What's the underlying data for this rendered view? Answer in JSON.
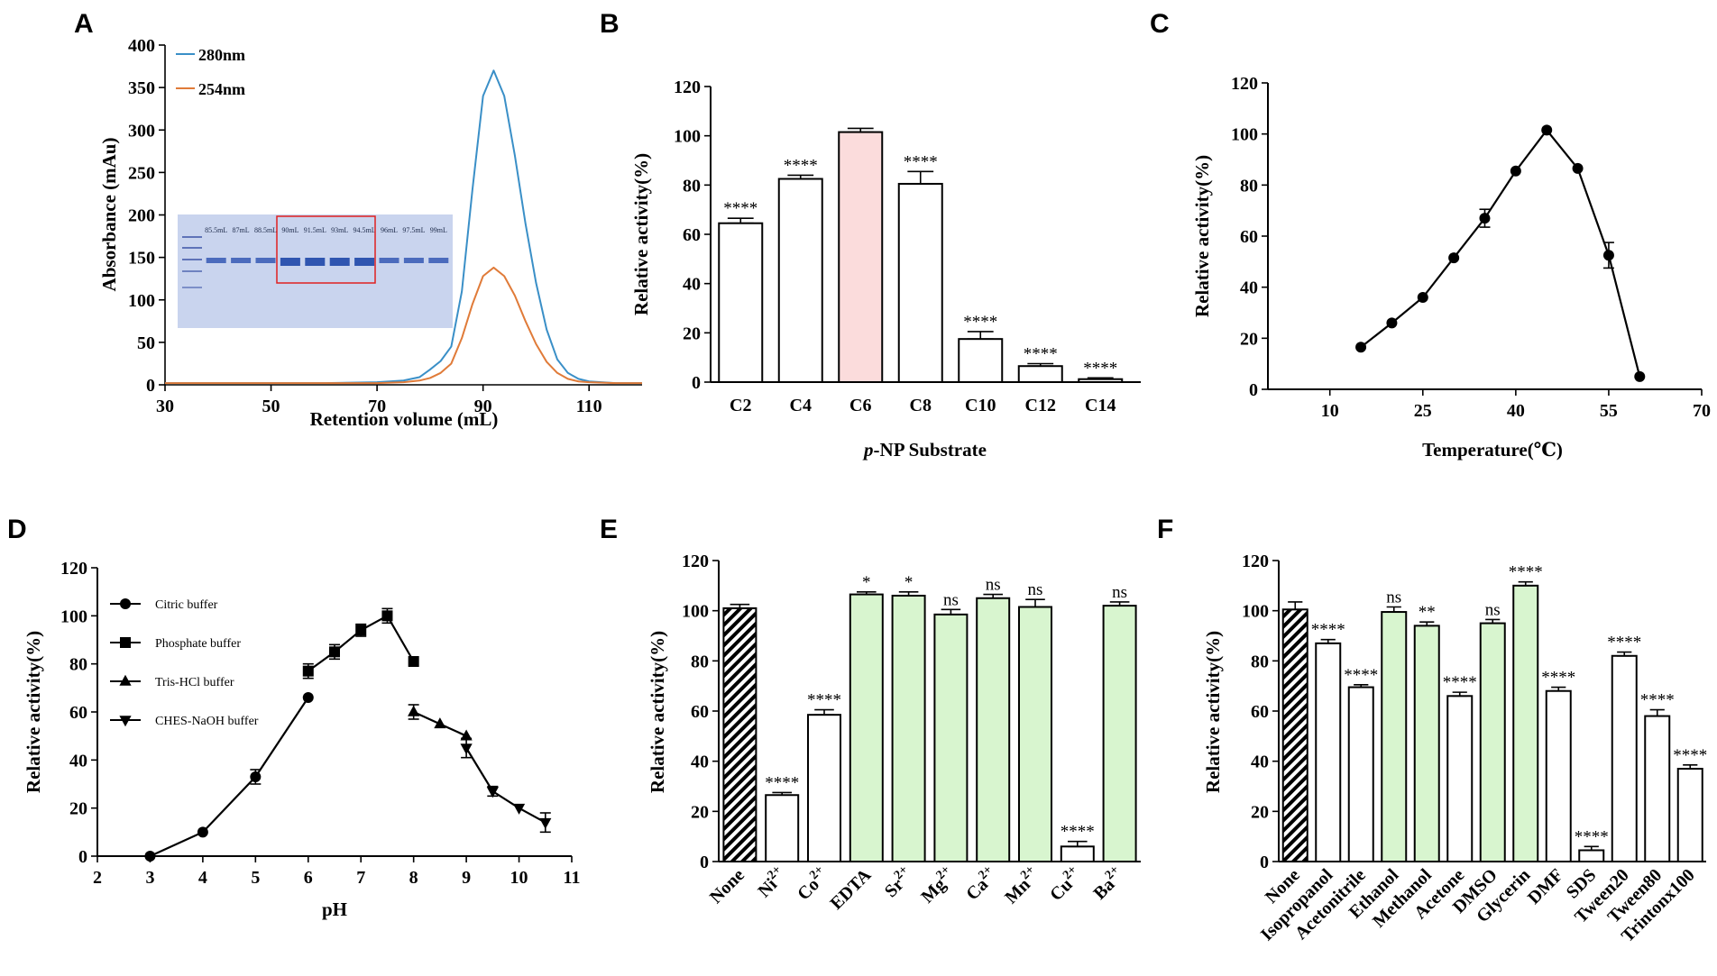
{
  "panel_labels": [
    "A",
    "B",
    "C",
    "D",
    "E",
    "F"
  ],
  "chart_data": [
    {
      "id": "A",
      "type": "line",
      "title": "",
      "xlabel": "Retention volume (mL)",
      "ylabel": "Absorbance (mAu)",
      "xlim": [
        30,
        120
      ],
      "ylim": [
        0,
        400
      ],
      "xticks": [
        30,
        50,
        70,
        90,
        110
      ],
      "yticks": [
        0,
        50,
        100,
        150,
        200,
        250,
        300,
        350,
        400
      ],
      "series": [
        {
          "name": "280nm",
          "color": "#3a8fc7",
          "x": [
            30,
            60,
            70,
            75,
            78,
            80,
            82,
            84,
            86,
            88,
            90,
            92,
            94,
            96,
            98,
            100,
            102,
            104,
            106,
            108,
            110,
            115,
            120
          ],
          "y": [
            2,
            2,
            3,
            5,
            9,
            18,
            28,
            45,
            110,
            230,
            340,
            370,
            340,
            270,
            190,
            120,
            65,
            30,
            14,
            7,
            4,
            2,
            2
          ]
        },
        {
          "name": "254nm",
          "color": "#e07b39",
          "x": [
            30,
            60,
            70,
            75,
            78,
            80,
            82,
            84,
            86,
            88,
            90,
            92,
            94,
            96,
            98,
            100,
            102,
            104,
            106,
            108,
            110,
            115,
            120
          ],
          "y": [
            2,
            2,
            2,
            3,
            5,
            8,
            14,
            25,
            55,
            95,
            128,
            138,
            128,
            105,
            75,
            48,
            27,
            14,
            7,
            4,
            3,
            2,
            2
          ]
        }
      ],
      "inset_gel": {
        "lane_labels": [
          "85.5mL",
          "87mL",
          "88.5mL",
          "90mL",
          "91.5mL",
          "93mL",
          "94.5mL",
          "96mL",
          "97.5mL",
          "99mL"
        ],
        "highlight": [
          "90mL",
          "91.5mL",
          "93mL",
          "94.5mL"
        ]
      }
    },
    {
      "id": "B",
      "type": "bar",
      "xlabel_prefix": "p",
      "xlabel": "-NP Substrate",
      "ylabel": "Relative activity(%)",
      "ylim": [
        0,
        120
      ],
      "yticks": [
        0,
        20,
        40,
        60,
        80,
        100,
        120
      ],
      "categories": [
        "C2",
        "C4",
        "C6",
        "C8",
        "C10",
        "C12",
        "C14"
      ],
      "values": [
        64.5,
        82.5,
        101.5,
        80.5,
        17.5,
        6.5,
        1.2
      ],
      "errors": [
        2,
        1.5,
        1.5,
        5,
        3,
        1,
        0.5
      ],
      "significance": [
        "****",
        "****",
        "",
        "****",
        "****",
        "****",
        "****"
      ],
      "highlight_color": "#fbdcdc",
      "highlight_index": 2
    },
    {
      "id": "C",
      "type": "line",
      "xlabel": "Temperature(℃)",
      "ylabel": "Relative activity(%)",
      "xlim": [
        0,
        70
      ],
      "ylim": [
        0,
        120
      ],
      "xticks": [
        10,
        25,
        40,
        55,
        70
      ],
      "yticks": [
        0,
        20,
        40,
        60,
        80,
        100,
        120
      ],
      "x": [
        15,
        20,
        25,
        30,
        35,
        40,
        45,
        50,
        55,
        60
      ],
      "y": [
        16.5,
        26,
        36,
        51.5,
        67,
        85.5,
        101.5,
        86.5,
        52.5,
        5
      ],
      "errors": [
        0.5,
        0.5,
        0.5,
        0.5,
        3.5,
        0.5,
        0.5,
        0.5,
        5,
        0.5
      ]
    },
    {
      "id": "D",
      "type": "line",
      "xlabel": "pH",
      "ylabel": "Relative activity(%)",
      "xlim": [
        2,
        11
      ],
      "ylim": [
        0,
        120
      ],
      "xticks": [
        2,
        3,
        4,
        5,
        6,
        7,
        8,
        9,
        10,
        11
      ],
      "yticks": [
        0,
        20,
        40,
        60,
        80,
        100,
        120
      ],
      "series": [
        {
          "name": "Citric buffer",
          "marker": "circle",
          "x": [
            3,
            4,
            5,
            6
          ],
          "y": [
            0,
            10,
            33,
            66
          ],
          "errors": [
            0,
            1,
            3,
            1
          ]
        },
        {
          "name": "Phosphate buffer",
          "marker": "square",
          "x": [
            6,
            6.5,
            7,
            7.5,
            8
          ],
          "y": [
            77,
            85,
            94,
            100,
            81
          ],
          "errors": [
            3,
            3,
            2.5,
            3,
            1
          ]
        },
        {
          "name": "Tris-HCl buffer",
          "marker": "triangle-up",
          "x": [
            8,
            8.5,
            9
          ],
          "y": [
            60,
            55,
            50
          ],
          "errors": [
            3,
            1,
            1
          ]
        },
        {
          "name": "CHES-NaOH buffer",
          "marker": "triangle-down",
          "x": [
            9,
            9.5,
            10,
            10.5
          ],
          "y": [
            45,
            27,
            20,
            14
          ],
          "errors": [
            4,
            2,
            1,
            4
          ]
        }
      ]
    },
    {
      "id": "E",
      "type": "bar",
      "xlabel": "",
      "ylabel": "Relative activity(%)",
      "ylim": [
        0,
        120
      ],
      "yticks": [
        0,
        20,
        40,
        60,
        80,
        100,
        120
      ],
      "categories": [
        "None",
        "Ni",
        "Co",
        "EDTA",
        "Sr",
        "Mg",
        "Ca",
        "Mn",
        "Cu",
        "Ba"
      ],
      "superscripts": [
        "",
        "2+",
        "2+",
        "",
        "2+",
        "2+",
        "2+",
        "2+",
        "2+",
        "2+"
      ],
      "values": [
        101,
        26.5,
        58.5,
        106.5,
        106,
        98.5,
        105,
        101.5,
        6,
        102
      ],
      "errors": [
        1.5,
        1,
        2,
        1,
        1.5,
        2,
        1.5,
        3,
        2,
        1.5
      ],
      "significance": [
        "",
        "****",
        "****",
        "*",
        "*",
        "ns",
        "ns",
        "ns",
        "****",
        "ns"
      ],
      "fills": [
        "hatch",
        "white",
        "white",
        "green",
        "green",
        "green",
        "green",
        "green",
        "white",
        "green"
      ],
      "green_color": "#d8f5cf"
    },
    {
      "id": "F",
      "type": "bar",
      "xlabel": "",
      "ylabel": "Relative activity(%)",
      "ylim": [
        0,
        120
      ],
      "yticks": [
        0,
        20,
        40,
        60,
        80,
        100,
        120
      ],
      "categories": [
        "None",
        "Isopropanol",
        "Acetonitrile",
        "Ethanol",
        "Methanol",
        "Acetone",
        "DMSO",
        "Glycerin",
        "DMF",
        "SDS",
        "Tween20",
        "Tween80",
        "Trintonx100"
      ],
      "values": [
        100.5,
        87,
        69.5,
        99.5,
        94,
        66,
        95,
        110,
        68,
        4.5,
        82,
        58,
        37
      ],
      "errors": [
        3,
        1.5,
        1,
        2,
        1.5,
        1.5,
        1.5,
        1.5,
        1.5,
        1.5,
        1.5,
        2.5,
        1.5
      ],
      "significance": [
        "",
        "****",
        "****",
        "ns",
        "**",
        "****",
        "ns",
        "****",
        "****",
        "****",
        "****",
        "****",
        "****"
      ],
      "fills": [
        "hatch",
        "white",
        "white",
        "green",
        "green",
        "white",
        "green",
        "green",
        "white",
        "white",
        "white",
        "white",
        "white"
      ],
      "green_color": "#d8f5cf"
    }
  ]
}
